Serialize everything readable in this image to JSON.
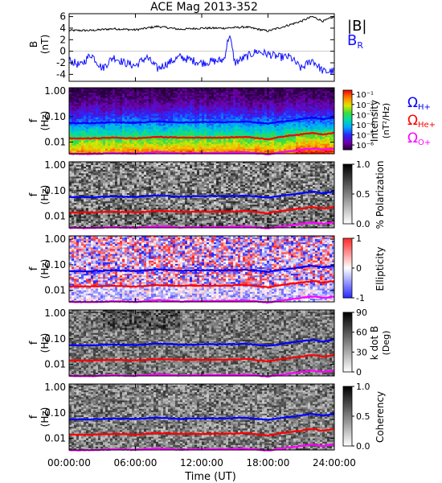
{
  "chart_data": {
    "type": "line",
    "title": "ACE Mag 2013-352",
    "xlabel": "Time (UT)",
    "xticks": [
      "00:00:00",
      "06:00:00",
      "12:00:00",
      "18:00:00",
      "24:00:00"
    ],
    "x_range_hours": [
      0,
      24
    ],
    "colors": {
      "B_total": "#000000",
      "B_R": "#1010ff",
      "H": "#0000ff",
      "He": "#ff0000",
      "O": "#ff00ff"
    },
    "panels": [
      {
        "id": "field",
        "ylabel": "B",
        "yunit": "(nT)",
        "yticks": [
          "6",
          "4",
          "2",
          "0",
          "-2",
          "-4"
        ],
        "ylim": [
          -5.2,
          6.5
        ],
        "legend": [
          {
            "label": "|B|",
            "key": "B_total"
          },
          {
            "label": "B",
            "sub": "R",
            "key": "B_R"
          }
        ],
        "series": [
          {
            "key": "B_total",
            "x": [
              0,
              2,
              4,
              6,
              8,
              10,
              12,
              14,
              16,
              18,
              20,
              21,
              22,
              23,
              24
            ],
            "y": [
              3.6,
              3.6,
              3.9,
              3.7,
              4.3,
              3.8,
              4.0,
              4.0,
              4.2,
              3.5,
              4.6,
              5.2,
              6.0,
              5.2,
              6.0
            ]
          },
          {
            "key": "B_R",
            "x": [
              0,
              1,
              2,
              3,
              4,
              5,
              6,
              7,
              8,
              10,
              12,
              14,
              14.5,
              15,
              17,
              19,
              20,
              21,
              22,
              23,
              24
            ],
            "y": [
              -1.5,
              -2.5,
              -0.5,
              -3.0,
              -1.0,
              -2.0,
              -2.5,
              -1.0,
              -3.0,
              -1.0,
              -2.0,
              -1.5,
              3.0,
              -2.0,
              0.0,
              -1.0,
              -1.0,
              -3.0,
              -1.5,
              -3.5,
              -3.5
            ]
          }
        ]
      },
      {
        "id": "intensity",
        "ylabel": "f",
        "yunit": "(Hz)",
        "yticks": [
          "1.00",
          "0.10",
          "0.01"
        ],
        "colorbar": {
          "label": "Intensity",
          "unit": "(nT²/Hz)",
          "ticks": [
            "10⁻¹",
            "10⁻²",
            "10⁻³",
            "10⁻⁴",
            "10⁻⁵",
            "10⁻⁶"
          ],
          "scale": "rainbow",
          "range": [
            -6,
            -0.5
          ]
        },
        "legend": [
          {
            "label": "Ω",
            "sub": "H+",
            "key": "H"
          },
          {
            "label": "Ω",
            "sub": "He+",
            "key": "He"
          },
          {
            "label": "Ω",
            "sub": "O+",
            "key": "O"
          }
        ]
      },
      {
        "id": "polarization",
        "ylabel": "f",
        "yunit": "(Hz)",
        "yticks": [
          "1.00",
          "0.10",
          "0.01"
        ],
        "colorbar": {
          "label": "% Polarization",
          "ticks": [
            "1.0",
            "0.5",
            "0.0"
          ],
          "scale": "gray",
          "range": [
            0,
            1
          ]
        }
      },
      {
        "id": "ellipticity",
        "ylabel": "f",
        "yunit": "(Hz)",
        "yticks": [
          "1.00",
          "0.10",
          "0.01"
        ],
        "colorbar": {
          "label": "Ellipticity",
          "ticks": [
            "1",
            "0",
            "-1"
          ],
          "scale": "bwr",
          "range": [
            -1,
            1
          ]
        }
      },
      {
        "id": "kdotb",
        "ylabel": "f",
        "yunit": "(Hz)",
        "yticks": [
          "1.00",
          "0.10",
          "0.01"
        ],
        "colorbar": {
          "label": "k dot B",
          "unit": "(Deg)",
          "ticks": [
            "90",
            "60",
            "30",
            "0"
          ],
          "scale": "gray",
          "range": [
            0,
            90
          ]
        }
      },
      {
        "id": "coherency",
        "ylabel": "f",
        "yunit": "(Hz)",
        "yticks": [
          "1.00",
          "0.10",
          "0.01"
        ],
        "colorbar": {
          "label": "Coherency",
          "ticks": [
            "1.0",
            "0.5",
            "0.0"
          ],
          "scale": "gray",
          "range": [
            0,
            1
          ]
        }
      }
    ],
    "gyrofrequencies_hz": {
      "x": [
        0,
        2,
        4,
        6,
        8,
        10,
        12,
        14,
        16,
        18,
        20,
        21,
        22,
        23,
        24
      ],
      "H": [
        0.056,
        0.055,
        0.06,
        0.057,
        0.065,
        0.058,
        0.061,
        0.061,
        0.064,
        0.053,
        0.07,
        0.079,
        0.091,
        0.079,
        0.091
      ],
      "He": [
        0.014,
        0.014,
        0.015,
        0.014,
        0.016,
        0.015,
        0.015,
        0.015,
        0.016,
        0.013,
        0.018,
        0.02,
        0.023,
        0.02,
        0.023
      ],
      "O": [
        0.0035,
        0.0034,
        0.0037,
        0.0035,
        0.0041,
        0.0036,
        0.0038,
        0.0038,
        0.004,
        0.0033,
        0.0044,
        0.005,
        0.0057,
        0.005,
        0.0057
      ]
    }
  }
}
